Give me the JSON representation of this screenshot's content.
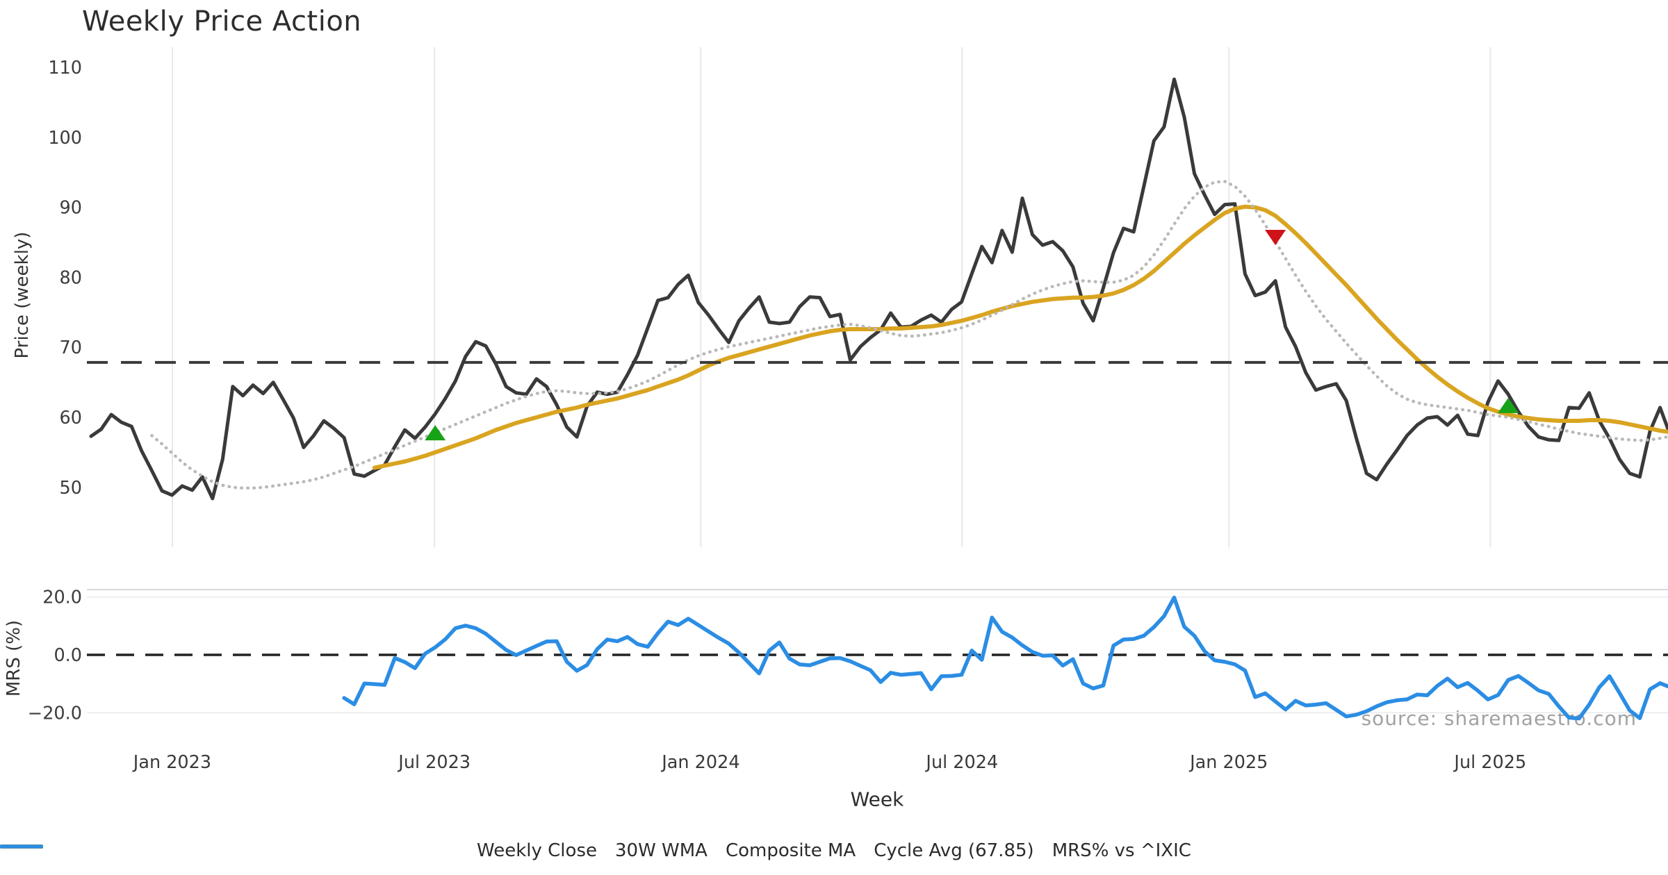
{
  "title": "Weekly Price Action",
  "watermark": "source: sharemaestro.com",
  "axes": {
    "x": {
      "label": "Week"
    },
    "price": {
      "label": "Price (weekly)"
    },
    "mrs": {
      "label": "MRS (%)"
    }
  },
  "legend": {
    "items": [
      {
        "label": "Weekly Close",
        "style": "solid",
        "color": "#3a3a3a",
        "width": 5
      },
      {
        "label": "30W WMA",
        "style": "solid",
        "color": "#d9a420",
        "width": 6
      },
      {
        "label": "Composite MA",
        "style": "dotted",
        "color": "#b8b8b8",
        "width": 4.5
      },
      {
        "label": "Cycle Avg (67.85)",
        "style": "dashed",
        "color": "#3a3a3a",
        "width": 4
      },
      {
        "label": "MRS% vs ^IXIC",
        "style": "solid",
        "color": "#2b8de4",
        "width": 5.5
      }
    ]
  },
  "chart_data": {
    "type": "line",
    "title": "Weekly Price Action",
    "xlabel": "Week",
    "x_ticks": [
      {
        "label": "Jan 2023",
        "week": 8.03
      },
      {
        "label": "Jul 2023",
        "week": 33.93
      },
      {
        "label": "Jan 2024",
        "week": 60.24
      },
      {
        "label": "Jul 2024",
        "week": 86.05
      },
      {
        "label": "Jan 2025",
        "week": 112.41
      },
      {
        "label": "Jul 2025",
        "week": 138.23
      }
    ],
    "price_panel": {
      "ylabel": "Price (weekly)",
      "ylim": [
        44,
        112.5
      ],
      "yticks": [
        110,
        100,
        90,
        80,
        70,
        60,
        50
      ],
      "grid": "vertical-only"
    },
    "mrs_panel": {
      "ylabel": "MRS (%)",
      "ylim": [
        -25,
        22.5
      ],
      "yticks": [
        {
          "label": "20.0",
          "value": 20
        },
        {
          "label": "0.0",
          "value": 0
        },
        {
          "label": "−20.0",
          "value": -20
        }
      ],
      "zero_line": 0
    },
    "cycle_avg": 67.85,
    "series": [
      {
        "name": "Weekly Close",
        "panel": "price",
        "color": "#3a3a3a",
        "style": "solid",
        "width": 5,
        "start_week": 0,
        "values": [
          57.3,
          58.3,
          60.4,
          59.3,
          58.7,
          55.2,
          52.4,
          49.5,
          48.9,
          50.2,
          49.6,
          51.5,
          48.4,
          54.0,
          64.4,
          63.1,
          64.6,
          63.4,
          65.0,
          62.5,
          59.9,
          55.7,
          57.4,
          59.5,
          58.4,
          57.1,
          51.9,
          51.6,
          52.4,
          53.2,
          55.8,
          58.2,
          57.0,
          58.6,
          60.5,
          62.7,
          65.2,
          68.7,
          70.8,
          70.2,
          67.6,
          64.4,
          63.5,
          63.3,
          65.5,
          64.4,
          61.8,
          58.6,
          57.2,
          61.6,
          63.6,
          63.3,
          63.6,
          66.1,
          68.9,
          72.8,
          76.7,
          77.1,
          79.0,
          80.3,
          76.4,
          74.6,
          72.6,
          70.7,
          73.8,
          75.6,
          77.2,
          73.6,
          73.4,
          73.6,
          75.8,
          77.2,
          77.1,
          74.4,
          74.7,
          68.2,
          70.1,
          71.4,
          72.5,
          74.9,
          72.9,
          73.0,
          73.9,
          74.6,
          73.6,
          75.4,
          76.5,
          80.5,
          84.4,
          82.1,
          86.7,
          83.6,
          91.3,
          86.1,
          84.6,
          85.1,
          83.8,
          81.5,
          76.3,
          73.8,
          78.5,
          83.5,
          87.0,
          86.5,
          93.0,
          99.5,
          101.5,
          108.3,
          102.9,
          94.8,
          91.8,
          89.0,
          90.4,
          90.5,
          80.5,
          77.4,
          77.9,
          79.5,
          72.9,
          70.1,
          66.4,
          63.9,
          64.4,
          64.8,
          62.4,
          57.0,
          52.0,
          51.1,
          53.3,
          55.3,
          57.4,
          58.9,
          59.9,
          60.1,
          58.9,
          60.3,
          57.6,
          57.4,
          62.2,
          65.2,
          63.3,
          60.8,
          58.7,
          57.2,
          56.8,
          56.7,
          61.4,
          61.3,
          63.5,
          59.5,
          57.0,
          54.0,
          52.0,
          51.5,
          58.0,
          61.4,
          57.5
        ]
      },
      {
        "name": "30W WMA",
        "panel": "price",
        "color": "#d9a420",
        "style": "solid",
        "width": 6,
        "start_week": 28,
        "values": [
          52.8,
          53.1,
          53.4,
          53.7,
          54.1,
          54.5,
          55.0,
          55.5,
          56.0,
          56.5,
          57.0,
          57.6,
          58.2,
          58.7,
          59.2,
          59.6,
          60.0,
          60.4,
          60.8,
          61.1,
          61.4,
          61.8,
          62.1,
          62.4,
          62.7,
          63.1,
          63.5,
          63.9,
          64.4,
          64.9,
          65.4,
          66.0,
          66.7,
          67.4,
          68.0,
          68.5,
          68.9,
          69.3,
          69.7,
          70.1,
          70.5,
          70.9,
          71.3,
          71.7,
          72.0,
          72.3,
          72.5,
          72.6,
          72.6,
          72.6,
          72.6,
          72.7,
          72.7,
          72.8,
          72.9,
          73.0,
          73.2,
          73.5,
          73.8,
          74.2,
          74.6,
          75.1,
          75.5,
          75.9,
          76.2,
          76.5,
          76.7,
          76.9,
          77.0,
          77.1,
          77.1,
          77.2,
          77.4,
          77.7,
          78.2,
          78.9,
          79.8,
          80.9,
          82.2,
          83.5,
          84.8,
          86.0,
          87.1,
          88.2,
          89.2,
          89.8,
          90.1,
          90.0,
          89.6,
          88.8,
          87.6,
          86.3,
          84.9,
          83.4,
          81.9,
          80.4,
          78.9,
          77.3,
          75.7,
          74.1,
          72.6,
          71.1,
          69.7,
          68.3,
          67.0,
          65.8,
          64.7,
          63.7,
          62.8,
          62.0,
          61.3,
          60.8,
          60.4,
          60.1,
          59.9,
          59.7,
          59.6,
          59.5,
          59.5,
          59.5,
          59.6,
          59.6,
          59.5,
          59.3,
          59.0,
          58.7,
          58.4,
          58.1,
          57.9
        ]
      },
      {
        "name": "Composite MA",
        "panel": "price",
        "color": "#b8b8b8",
        "style": "dotted",
        "width": 4.5,
        "start_week": 6,
        "values": [
          57.4,
          56.2,
          54.9,
          53.6,
          52.5,
          51.6,
          50.8,
          50.3,
          50.0,
          49.9,
          49.9,
          50.0,
          50.2,
          50.4,
          50.6,
          50.8,
          51.1,
          51.5,
          52.0,
          52.5,
          53.0,
          53.6,
          54.2,
          54.8,
          55.4,
          56.0,
          56.6,
          57.2,
          57.8,
          58.4,
          59.0,
          59.6,
          60.2,
          60.8,
          61.4,
          62.0,
          62.5,
          63.0,
          63.4,
          63.7,
          63.8,
          63.7,
          63.5,
          63.4,
          63.4,
          63.5,
          63.7,
          64.1,
          64.6,
          65.2,
          65.9,
          66.7,
          67.5,
          68.2,
          68.8,
          69.3,
          69.7,
          70.1,
          70.4,
          70.7,
          71.0,
          71.3,
          71.6,
          71.9,
          72.2,
          72.5,
          72.8,
          73.0,
          73.2,
          73.3,
          73.1,
          72.8,
          72.4,
          72.0,
          71.7,
          71.6,
          71.7,
          71.9,
          72.1,
          72.4,
          72.8,
          73.3,
          73.9,
          74.6,
          75.3,
          76.1,
          76.9,
          77.6,
          78.2,
          78.7,
          79.1,
          79.4,
          79.5,
          79.4,
          79.3,
          79.3,
          79.6,
          80.3,
          81.5,
          83.2,
          85.3,
          87.6,
          89.8,
          91.6,
          92.9,
          93.6,
          93.7,
          93.0,
          91.6,
          89.7,
          87.5,
          85.1,
          82.7,
          80.3,
          78.0,
          75.9,
          74.0,
          72.3,
          70.6,
          69.0,
          67.4,
          65.9,
          64.5,
          63.4,
          62.6,
          62.1,
          61.8,
          61.6,
          61.4,
          61.2,
          61.0,
          60.7,
          60.4,
          60.2,
          60.0,
          59.7,
          59.4,
          59.0,
          58.7,
          58.3,
          58.0,
          57.7,
          57.5,
          57.3,
          57.1,
          56.9,
          56.8,
          56.7,
          56.8,
          57.0,
          57.3
        ]
      },
      {
        "name": "Cycle Avg (67.85)",
        "panel": "price",
        "color": "#3a3a3a",
        "style": "dashed",
        "width": 4,
        "hline": 67.85
      },
      {
        "name": "MRS% vs ^IXIC",
        "panel": "mrs",
        "color": "#2b8de4",
        "style": "solid",
        "width": 5.5,
        "start_week": 25,
        "values": [
          -14.9,
          -17.1,
          -9.9,
          -10.1,
          -10.4,
          -1.1,
          -2.5,
          -4.6,
          0.4,
          2.6,
          5.4,
          9.2,
          10.1,
          9.2,
          7.3,
          4.5,
          1.7,
          -0.1,
          1.5,
          3.1,
          4.6,
          4.7,
          -2.4,
          -5.5,
          -3.5,
          2.0,
          5.3,
          4.7,
          6.2,
          3.7,
          2.8,
          7.5,
          11.5,
          10.3,
          12.5,
          10.3,
          8.1,
          5.9,
          3.9,
          0.8,
          -2.8,
          -6.4,
          1.5,
          4.3,
          -1.3,
          -3.3,
          -3.6,
          -2.4,
          -1.2,
          -1.1,
          -2.2,
          -3.8,
          -5.3,
          -9.4,
          -6.2,
          -6.9,
          -6.6,
          -6.3,
          -11.9,
          -7.4,
          -7.3,
          -6.9,
          1.5,
          -1.7,
          12.9,
          8.0,
          6.0,
          3.3,
          1.0,
          -0.3,
          -0.2,
          -3.7,
          -1.5,
          -9.9,
          -11.6,
          -10.6,
          3.2,
          5.3,
          5.5,
          6.6,
          9.6,
          13.4,
          19.8,
          9.7,
          6.6,
          1.3,
          -1.9,
          -2.4,
          -3.3,
          -5.4,
          -14.6,
          -13.3,
          -16.1,
          -18.9,
          -15.9,
          -17.5,
          -17.2,
          -16.7,
          -19.0,
          -21.3,
          -20.7,
          -19.5,
          -17.8,
          -16.4,
          -15.7,
          -15.4,
          -13.7,
          -14.0,
          -10.7,
          -8.2,
          -11.2,
          -9.7,
          -12.4,
          -15.4,
          -13.9,
          -8.7,
          -7.3,
          -9.7,
          -12.3,
          -13.5,
          -17.8,
          -21.7,
          -22.0,
          -17.2,
          -11.2,
          -7.4,
          -13.2,
          -19.2,
          -21.9,
          -11.9,
          -9.8,
          -11.2
        ]
      }
    ],
    "markers": [
      {
        "week": 34,
        "value": 57.8,
        "type": "buy",
        "color": "#17a317"
      },
      {
        "week": 117,
        "value": 85.7,
        "type": "sell",
        "color": "#cf1318"
      },
      {
        "week": 140,
        "value": 61.7,
        "type": "buy",
        "color": "#17a317"
      }
    ]
  }
}
